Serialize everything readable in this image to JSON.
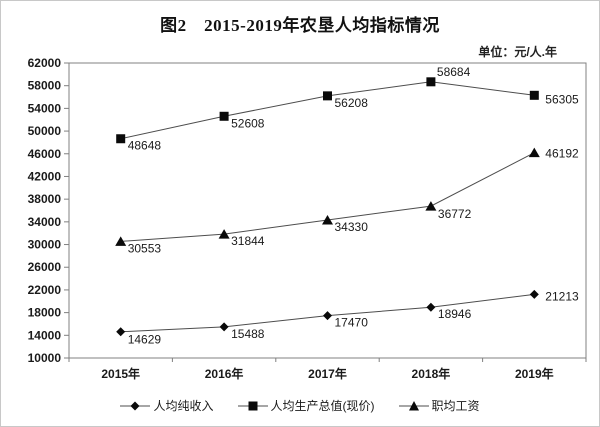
{
  "title": "图2　2015-2019年农垦人均指标情况",
  "unit_label": "单位：元/人.年",
  "colors": {
    "background": "#ffffff",
    "text": "#1a1a1a",
    "line": "#4d4d4d",
    "marker": "#0a0a0a",
    "frame": "#808080"
  },
  "chart_data": {
    "type": "line",
    "title": "图2　2015-2019年农垦人均指标情况",
    "unit": "单位：元/人.年",
    "categories": [
      "2015年",
      "2016年",
      "2017年",
      "2018年",
      "2019年"
    ],
    "series": [
      {
        "name": "人均纯收入",
        "marker": "diamond",
        "values": [
          14629,
          15488,
          17470,
          18946,
          21213
        ],
        "label_offsets": [
          [
            7,
            12
          ],
          [
            7,
            11
          ],
          [
            7,
            11
          ],
          [
            7,
            11
          ],
          [
            11,
            6
          ]
        ]
      },
      {
        "name": "人均生产总值(现价)",
        "marker": "square",
        "values": [
          48648,
          52608,
          56208,
          58684,
          56305
        ],
        "label_offsets": [
          [
            7,
            11
          ],
          [
            7,
            11
          ],
          [
            7,
            11
          ],
          [
            6,
            -6
          ],
          [
            11,
            8
          ]
        ]
      },
      {
        "name": "职均工资",
        "marker": "triangle",
        "values": [
          30553,
          31844,
          34330,
          36772,
          46192
        ],
        "label_offsets": [
          [
            7,
            11
          ],
          [
            7,
            11
          ],
          [
            7,
            11
          ],
          [
            7,
            12
          ],
          [
            11,
            5
          ]
        ]
      }
    ],
    "xlabel": "",
    "ylabel": "",
    "ylim": [
      10000,
      62000
    ],
    "yticks": [
      10000,
      14000,
      18000,
      22000,
      26000,
      30000,
      34000,
      38000,
      42000,
      46000,
      50000,
      54000,
      58000,
      62000
    ],
    "grid": false,
    "legend_position": "bottom",
    "data_labels": true
  }
}
